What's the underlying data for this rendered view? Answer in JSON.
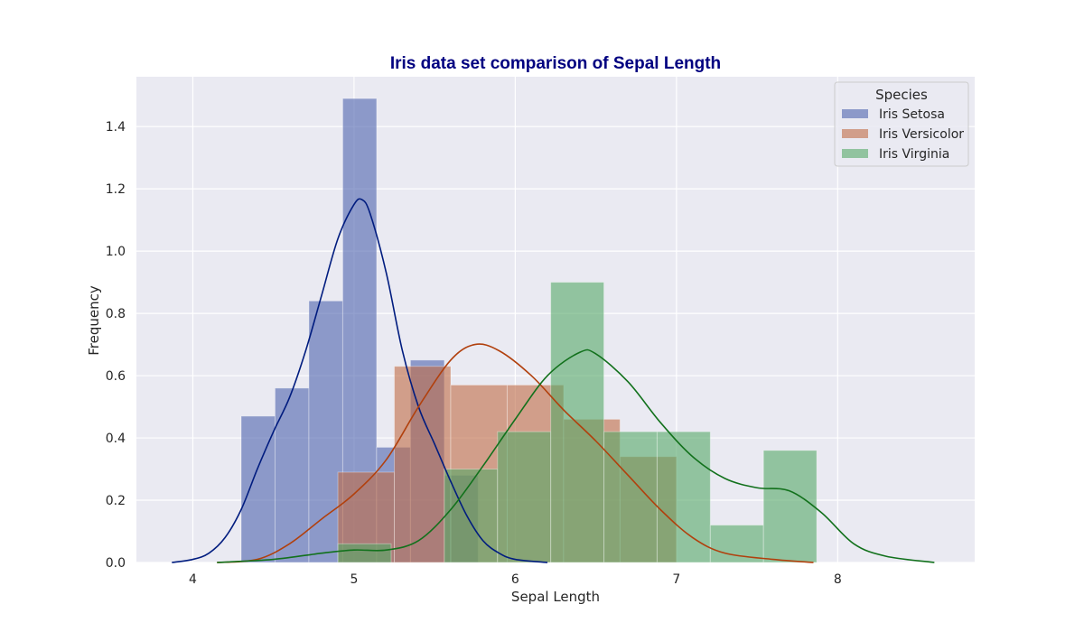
{
  "chart_data": {
    "type": "bar",
    "title": "Iris data set comparison of Sepal Length",
    "xlabel": "Sepal Length",
    "ylabel": "Frequency",
    "xlim": [
      3.65,
      8.85
    ],
    "ylim": [
      0,
      1.56
    ],
    "xticks": [
      4,
      5,
      6,
      7,
      8
    ],
    "yticks": [
      0.0,
      0.2,
      0.4,
      0.6,
      0.8,
      1.0,
      1.2,
      1.4
    ],
    "ytick_labels": [
      "0.0",
      "0.2",
      "0.4",
      "0.6",
      "0.8",
      "1.0",
      "1.2",
      "1.4"
    ],
    "grid": true,
    "legend": {
      "title": "Species",
      "position": "top-right"
    },
    "colors": {
      "title": "#000080",
      "background": "#eaeaf2",
      "grid": "#ffffff"
    },
    "series": [
      {
        "name": "Iris Setosa",
        "fill": "#4c63ad",
        "line": "#001c7f",
        "bins": [
          {
            "x0": 4.3,
            "x1": 4.51,
            "y": 0.47
          },
          {
            "x0": 4.51,
            "x1": 4.72,
            "y": 0.56
          },
          {
            "x0": 4.72,
            "x1": 4.93,
            "y": 0.84
          },
          {
            "x0": 4.93,
            "x1": 5.14,
            "y": 1.49
          },
          {
            "x0": 5.14,
            "x1": 5.35,
            "y": 0.37
          },
          {
            "x0": 5.35,
            "x1": 5.56,
            "y": 0.65
          },
          {
            "x0": 5.56,
            "x1": 5.77,
            "y": 0.28
          }
        ],
        "kde": [
          [
            3.87,
            0.0
          ],
          [
            4.0,
            0.01
          ],
          [
            4.1,
            0.03
          ],
          [
            4.2,
            0.08
          ],
          [
            4.3,
            0.17
          ],
          [
            4.4,
            0.3
          ],
          [
            4.5,
            0.42
          ],
          [
            4.6,
            0.53
          ],
          [
            4.7,
            0.68
          ],
          [
            4.8,
            0.86
          ],
          [
            4.9,
            1.04
          ],
          [
            5.0,
            1.15
          ],
          [
            5.05,
            1.165
          ],
          [
            5.1,
            1.12
          ],
          [
            5.2,
            0.93
          ],
          [
            5.3,
            0.68
          ],
          [
            5.4,
            0.5
          ],
          [
            5.5,
            0.38
          ],
          [
            5.6,
            0.26
          ],
          [
            5.7,
            0.15
          ],
          [
            5.8,
            0.07
          ],
          [
            5.9,
            0.03
          ],
          [
            6.0,
            0.01
          ],
          [
            6.2,
            0.0
          ]
        ]
      },
      {
        "name": "Iris Versicolor",
        "fill": "#c06a45",
        "line": "#b1400d",
        "bins": [
          {
            "x0": 4.9,
            "x1": 5.25,
            "y": 0.29
          },
          {
            "x0": 5.25,
            "x1": 5.6,
            "y": 0.63
          },
          {
            "x0": 5.6,
            "x1": 5.95,
            "y": 0.57
          },
          {
            "x0": 5.95,
            "x1": 6.3,
            "y": 0.57
          },
          {
            "x0": 6.3,
            "x1": 6.65,
            "y": 0.46
          },
          {
            "x0": 6.65,
            "x1": 7.0,
            "y": 0.34
          }
        ],
        "kde": [
          [
            4.15,
            0.0
          ],
          [
            4.4,
            0.01
          ],
          [
            4.6,
            0.06
          ],
          [
            4.8,
            0.14
          ],
          [
            5.0,
            0.22
          ],
          [
            5.2,
            0.33
          ],
          [
            5.4,
            0.5
          ],
          [
            5.6,
            0.65
          ],
          [
            5.75,
            0.7
          ],
          [
            5.9,
            0.68
          ],
          [
            6.1,
            0.6
          ],
          [
            6.3,
            0.49
          ],
          [
            6.5,
            0.39
          ],
          [
            6.7,
            0.28
          ],
          [
            6.9,
            0.17
          ],
          [
            7.1,
            0.08
          ],
          [
            7.3,
            0.03
          ],
          [
            7.6,
            0.01
          ],
          [
            7.85,
            0.0
          ]
        ]
      },
      {
        "name": "Iris Virginia",
        "fill": "#55a868",
        "line": "#12711c",
        "bins": [
          {
            "x0": 4.9,
            "x1": 5.23,
            "y": 0.06
          },
          {
            "x0": 5.56,
            "x1": 5.89,
            "y": 0.3
          },
          {
            "x0": 5.89,
            "x1": 6.22,
            "y": 0.42
          },
          {
            "x0": 6.22,
            "x1": 6.55,
            "y": 0.9
          },
          {
            "x0": 6.55,
            "x1": 6.88,
            "y": 0.42
          },
          {
            "x0": 6.88,
            "x1": 7.21,
            "y": 0.42
          },
          {
            "x0": 7.21,
            "x1": 7.54,
            "y": 0.12
          },
          {
            "x0": 7.54,
            "x1": 7.87,
            "y": 0.36
          }
        ],
        "kde": [
          [
            4.15,
            0.0
          ],
          [
            4.5,
            0.01
          ],
          [
            4.8,
            0.03
          ],
          [
            5.0,
            0.04
          ],
          [
            5.2,
            0.04
          ],
          [
            5.4,
            0.07
          ],
          [
            5.6,
            0.17
          ],
          [
            5.8,
            0.31
          ],
          [
            6.0,
            0.46
          ],
          [
            6.2,
            0.6
          ],
          [
            6.4,
            0.675
          ],
          [
            6.5,
            0.67
          ],
          [
            6.7,
            0.58
          ],
          [
            6.9,
            0.45
          ],
          [
            7.1,
            0.34
          ],
          [
            7.3,
            0.27
          ],
          [
            7.5,
            0.24
          ],
          [
            7.7,
            0.23
          ],
          [
            7.9,
            0.16
          ],
          [
            8.1,
            0.06
          ],
          [
            8.3,
            0.02
          ],
          [
            8.6,
            0.0
          ]
        ]
      }
    ]
  }
}
